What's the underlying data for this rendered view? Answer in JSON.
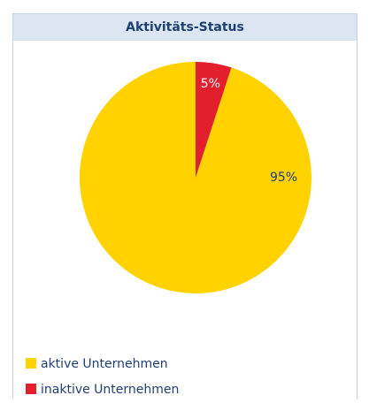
{
  "chart_data": {
    "type": "pie",
    "title": "Aktivitäts-Status",
    "categories": [
      "aktive Unternehmen",
      "inaktive Unternehmen"
    ],
    "values": [
      95,
      5
    ],
    "value_labels": [
      "95%",
      "5%"
    ],
    "colors": [
      "#ffd200",
      "#e31e2d"
    ],
    "label_colors": [
      "#1f3f73",
      "#ffffff"
    ],
    "legend": "bottom-left"
  }
}
